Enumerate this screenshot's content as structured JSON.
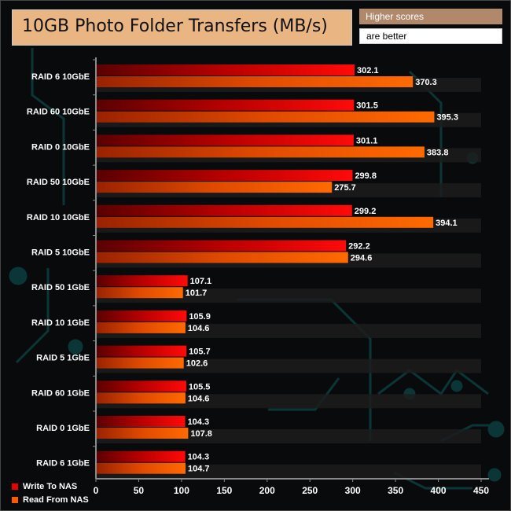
{
  "chart_data": {
    "type": "bar",
    "title": "10GB Photo Folder Transfers (MB/s)",
    "note_line1": "Higher scores",
    "note_line2": "are better",
    "categories": [
      "RAID 6 10GbE",
      "RAID 60 10GbE",
      "RAID 0 10GbE",
      "RAID 50 10GbE",
      "RAID 10 10GbE",
      "RAID 5 10GbE",
      "RAID 50 1GbE",
      "RAID 10 1GbE",
      "RAID 5 1GbE",
      "RAID 60 1GbE",
      "RAID 0 1GbE",
      "RAID 6 1GbE"
    ],
    "series": [
      {
        "name": "Write To NAS",
        "color": "#e80000",
        "values": [
          302.1,
          301.5,
          301.1,
          299.8,
          299.2,
          292.2,
          107.1,
          105.9,
          105.7,
          105.5,
          104.3,
          104.3
        ]
      },
      {
        "name": "Read From NAS",
        "color": "#ff5a00",
        "values": [
          370.3,
          395.3,
          383.8,
          275.7,
          394.1,
          294.6,
          101.7,
          104.6,
          102.6,
          104.6,
          107.8,
          104.7
        ]
      }
    ],
    "xlim": [
      0,
      450
    ],
    "xticks": [
      0,
      50,
      100,
      150,
      200,
      250,
      300,
      350,
      400,
      450
    ],
    "legend_position": "bottom-left",
    "grid": false
  }
}
